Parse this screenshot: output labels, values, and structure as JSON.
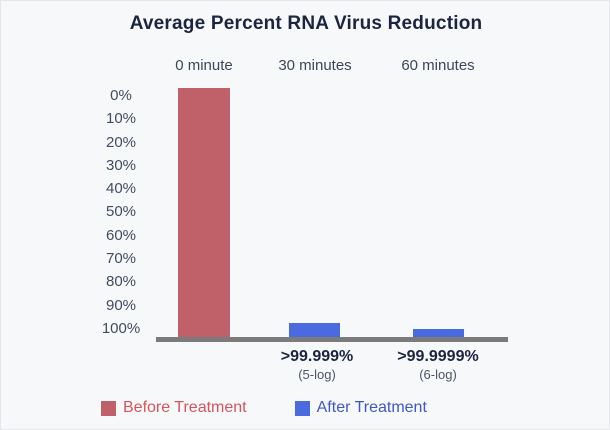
{
  "chart_data": {
    "type": "bar",
    "title": "Average Percent RNA Virus Reduction",
    "categories": [
      "0 minute",
      "30 minutes",
      "60 minutes"
    ],
    "y_axis": {
      "ticks": [
        "0%",
        "10%",
        "20%",
        "30%",
        "40%",
        "50%",
        "60%",
        "70%",
        "80%",
        "90%",
        "100%"
      ],
      "inverted": true,
      "range_percent": [
        0,
        100
      ],
      "grid": false
    },
    "series": [
      {
        "name": "Before Treatment",
        "color": "#c0616a",
        "values": [
          100,
          null,
          null
        ]
      },
      {
        "name": "After Treatment",
        "color": "#4a6ae0",
        "values": [
          null,
          5.5,
          3.2
        ]
      }
    ],
    "bars": [
      {
        "category": "0 minute",
        "series": "Before Treatment",
        "height_percent": 100,
        "color": "#c0616a"
      },
      {
        "category": "30 minutes",
        "series": "After Treatment",
        "height_percent": 5.5,
        "color": "#4a6ae0"
      },
      {
        "category": "60 minutes",
        "series": "After Treatment",
        "height_percent": 3.2,
        "color": "#4a6ae0"
      }
    ],
    "annotations": [
      {
        "category": "30 minutes",
        "value": ">99.999%",
        "note": "(5-log)"
      },
      {
        "category": "60 minutes",
        "value": ">99.9999%",
        "note": "(6-log)"
      }
    ],
    "legend": {
      "position": "bottom-left",
      "entries": [
        {
          "label": "Before Treatment",
          "color": "#c0616a",
          "text_color": "#d9545c"
        },
        {
          "label": "After Treatment",
          "color": "#4a6ae0",
          "text_color": "#3f57c9"
        }
      ]
    },
    "baseline_color": "#7b7b7b",
    "background_color": "#f7f8fa"
  }
}
